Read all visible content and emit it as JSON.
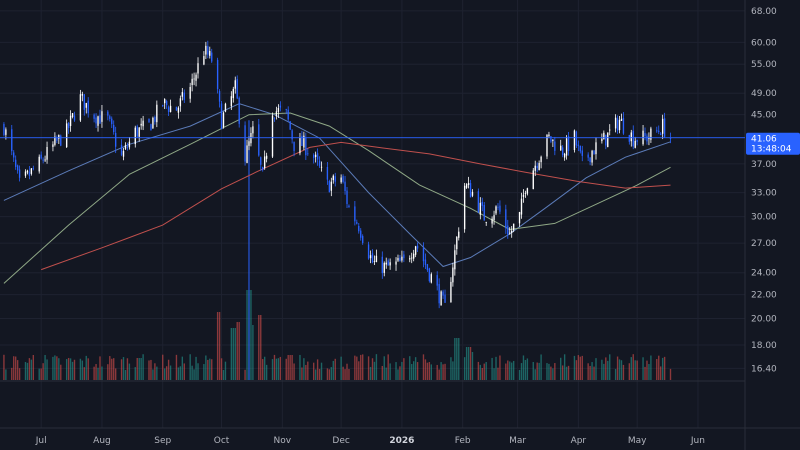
{
  "theme": {
    "background": "#131722",
    "grid": "#1e2230",
    "text": "#b2b5be",
    "up": "#ffffff",
    "down": "#2962ff",
    "vol_up": "#26a69a",
    "vol_down": "#ef5350",
    "ma_fast": "#5b7bb8",
    "ma_mid": "#8fa886",
    "ma_slow": "#c0504d",
    "price_tag": "#2962ff"
  },
  "price_tag": {
    "value": "41.06",
    "time": "13:48:04"
  },
  "chart_data": {
    "type": "candlestick",
    "title": "",
    "yaxis": {
      "scale": "log",
      "ticks": [
        "68.00",
        "60.00",
        "55.00",
        "49.00",
        "45.00",
        "41.00",
        "37.00",
        "33.00",
        "30.00",
        "27.00",
        "24.00",
        "22.00",
        "20.00",
        "18.00",
        "16.40"
      ],
      "range": [
        15.6,
        71
      ]
    },
    "xaxis": {
      "ticks": [
        {
          "label": "Jul",
          "date": "2025-07-01",
          "bold": false
        },
        {
          "label": "Aug",
          "date": "2025-08-01",
          "bold": false
        },
        {
          "label": "Sep",
          "date": "2025-09-01",
          "bold": false
        },
        {
          "label": "Oct",
          "date": "2025-10-01",
          "bold": false
        },
        {
          "label": "Nov",
          "date": "2025-11-01",
          "bold": false
        },
        {
          "label": "Dec",
          "date": "2025-12-01",
          "bold": false
        },
        {
          "label": "2026",
          "date": "2026-01-01",
          "bold": true
        },
        {
          "label": "Feb",
          "date": "2026-02-01",
          "bold": false
        },
        {
          "label": "Mar",
          "date": "2026-03-01",
          "bold": false
        },
        {
          "label": "Apr",
          "date": "2026-04-01",
          "bold": false
        },
        {
          "label": "May",
          "date": "2026-05-01",
          "bold": false
        },
        {
          "label": "Jun",
          "date": "2026-06-01",
          "bold": false
        }
      ],
      "range": [
        "2025-06-10",
        "2026-06-25"
      ]
    },
    "close_series": [
      [
        "2025-06-12",
        43
      ],
      [
        "2025-06-20",
        34
      ],
      [
        "2025-06-30",
        37
      ],
      [
        "2025-07-08",
        40
      ],
      [
        "2025-07-14",
        42
      ],
      [
        "2025-07-21",
        48
      ],
      [
        "2025-07-28",
        45
      ],
      [
        "2025-08-04",
        44
      ],
      [
        "2025-08-11",
        38
      ],
      [
        "2025-08-18",
        42
      ],
      [
        "2025-08-25",
        43
      ],
      [
        "2025-09-01",
        47
      ],
      [
        "2025-09-08",
        46
      ],
      [
        "2025-09-15",
        50
      ],
      [
        "2025-09-22",
        58
      ],
      [
        "2025-09-26",
        56
      ],
      [
        "2025-10-01",
        44
      ],
      [
        "2025-10-06",
        48
      ],
      [
        "2025-10-08",
        50
      ],
      [
        "2025-10-13",
        38
      ],
      [
        "2025-10-17",
        42
      ],
      [
        "2025-10-22",
        35
      ],
      [
        "2025-10-27",
        46
      ],
      [
        "2025-11-03",
        45
      ],
      [
        "2025-11-07",
        40
      ],
      [
        "2025-11-12",
        40
      ],
      [
        "2025-11-17",
        38
      ],
      [
        "2025-11-24",
        34
      ],
      [
        "2025-12-01",
        35
      ],
      [
        "2025-12-05",
        31
      ],
      [
        "2025-12-10",
        29
      ],
      [
        "2025-12-17",
        25
      ],
      [
        "2025-12-24",
        24.5
      ],
      [
        "2026-01-02",
        25
      ],
      [
        "2026-01-08",
        27
      ],
      [
        "2026-01-15",
        24
      ],
      [
        "2026-01-20",
        22
      ],
      [
        "2026-01-23",
        20.8
      ],
      [
        "2026-01-28",
        26
      ],
      [
        "2026-02-02",
        34
      ],
      [
        "2026-02-06",
        33
      ],
      [
        "2026-02-12",
        30
      ],
      [
        "2026-02-19",
        31
      ],
      [
        "2026-02-25",
        28
      ],
      [
        "2026-03-02",
        30
      ],
      [
        "2026-03-05",
        34
      ],
      [
        "2026-03-10",
        37
      ],
      [
        "2026-03-17",
        41
      ],
      [
        "2026-03-24",
        39
      ],
      [
        "2026-03-30",
        41
      ],
      [
        "2026-04-03",
        37
      ],
      [
        "2026-04-08",
        39
      ],
      [
        "2026-04-15",
        41
      ],
      [
        "2026-04-22",
        44
      ],
      [
        "2026-04-29",
        41
      ],
      [
        "2026-05-05",
        41
      ],
      [
        "2026-05-11",
        42
      ],
      [
        "2026-05-14",
        43
      ],
      [
        "2026-05-18",
        41
      ]
    ],
    "moving_averages": [
      {
        "color_key": "ma_fast",
        "points": [
          [
            "2025-06-12",
            32
          ],
          [
            "2025-07-15",
            36
          ],
          [
            "2025-08-15",
            40
          ],
          [
            "2025-09-15",
            43
          ],
          [
            "2025-10-10",
            47
          ],
          [
            "2025-10-28",
            45
          ],
          [
            "2025-11-20",
            41
          ],
          [
            "2025-12-15",
            33
          ],
          [
            "2026-01-05",
            28
          ],
          [
            "2026-01-22",
            24.6
          ],
          [
            "2026-02-05",
            25.5
          ],
          [
            "2026-02-25",
            28
          ],
          [
            "2026-03-15",
            31
          ],
          [
            "2026-04-05",
            35
          ],
          [
            "2026-04-25",
            38
          ],
          [
            "2026-05-18",
            40.4
          ]
        ]
      },
      {
        "color_key": "ma_mid",
        "points": [
          [
            "2025-06-12",
            23
          ],
          [
            "2025-07-15",
            29
          ],
          [
            "2025-08-15",
            35.5
          ],
          [
            "2025-09-15",
            40
          ],
          [
            "2025-10-15",
            45
          ],
          [
            "2025-11-05",
            45.3
          ],
          [
            "2025-11-25",
            43
          ],
          [
            "2025-12-15",
            39
          ],
          [
            "2026-01-10",
            34
          ],
          [
            "2026-02-05",
            31
          ],
          [
            "2026-02-25",
            28.5
          ],
          [
            "2026-03-20",
            29.2
          ],
          [
            "2026-04-10",
            31.5
          ],
          [
            "2026-05-01",
            34
          ],
          [
            "2026-05-18",
            36.5
          ]
        ]
      },
      {
        "color_key": "ma_slow",
        "points": [
          [
            "2025-07-01",
            24.3
          ],
          [
            "2025-08-01",
            26.5
          ],
          [
            "2025-09-01",
            29
          ],
          [
            "2025-10-01",
            33.5
          ],
          [
            "2025-10-20",
            36
          ],
          [
            "2025-11-15",
            39.5
          ],
          [
            "2025-12-01",
            40.3
          ],
          [
            "2025-12-20",
            39.5
          ],
          [
            "2026-01-15",
            38.5
          ],
          [
            "2026-02-10",
            37
          ],
          [
            "2026-03-05",
            35.8
          ],
          [
            "2026-04-01",
            34.5
          ],
          [
            "2026-04-25",
            33.6
          ],
          [
            "2026-05-18",
            34
          ]
        ]
      }
    ],
    "volume_spikes": [
      {
        "date": "2025-06-28",
        "v": 0.25
      },
      {
        "date": "2025-08-20",
        "v": 0.22
      },
      {
        "date": "2025-09-29",
        "v": 0.68
      },
      {
        "date": "2025-10-07",
        "v": 0.52
      },
      {
        "date": "2025-10-10",
        "v": 0.58
      },
      {
        "date": "2025-10-15",
        "v": 0.9
      },
      {
        "date": "2025-10-18",
        "v": 0.55
      },
      {
        "date": "2025-10-20",
        "v": 0.65
      },
      {
        "date": "2025-11-05",
        "v": 0.25
      },
      {
        "date": "2026-01-29",
        "v": 0.42
      },
      {
        "date": "2026-01-30",
        "v": 0.35
      },
      {
        "date": "2026-02-04",
        "v": 0.33
      },
      {
        "date": "2026-02-06",
        "v": 0.28
      },
      {
        "date": "2026-03-05",
        "v": 0.2
      }
    ]
  }
}
